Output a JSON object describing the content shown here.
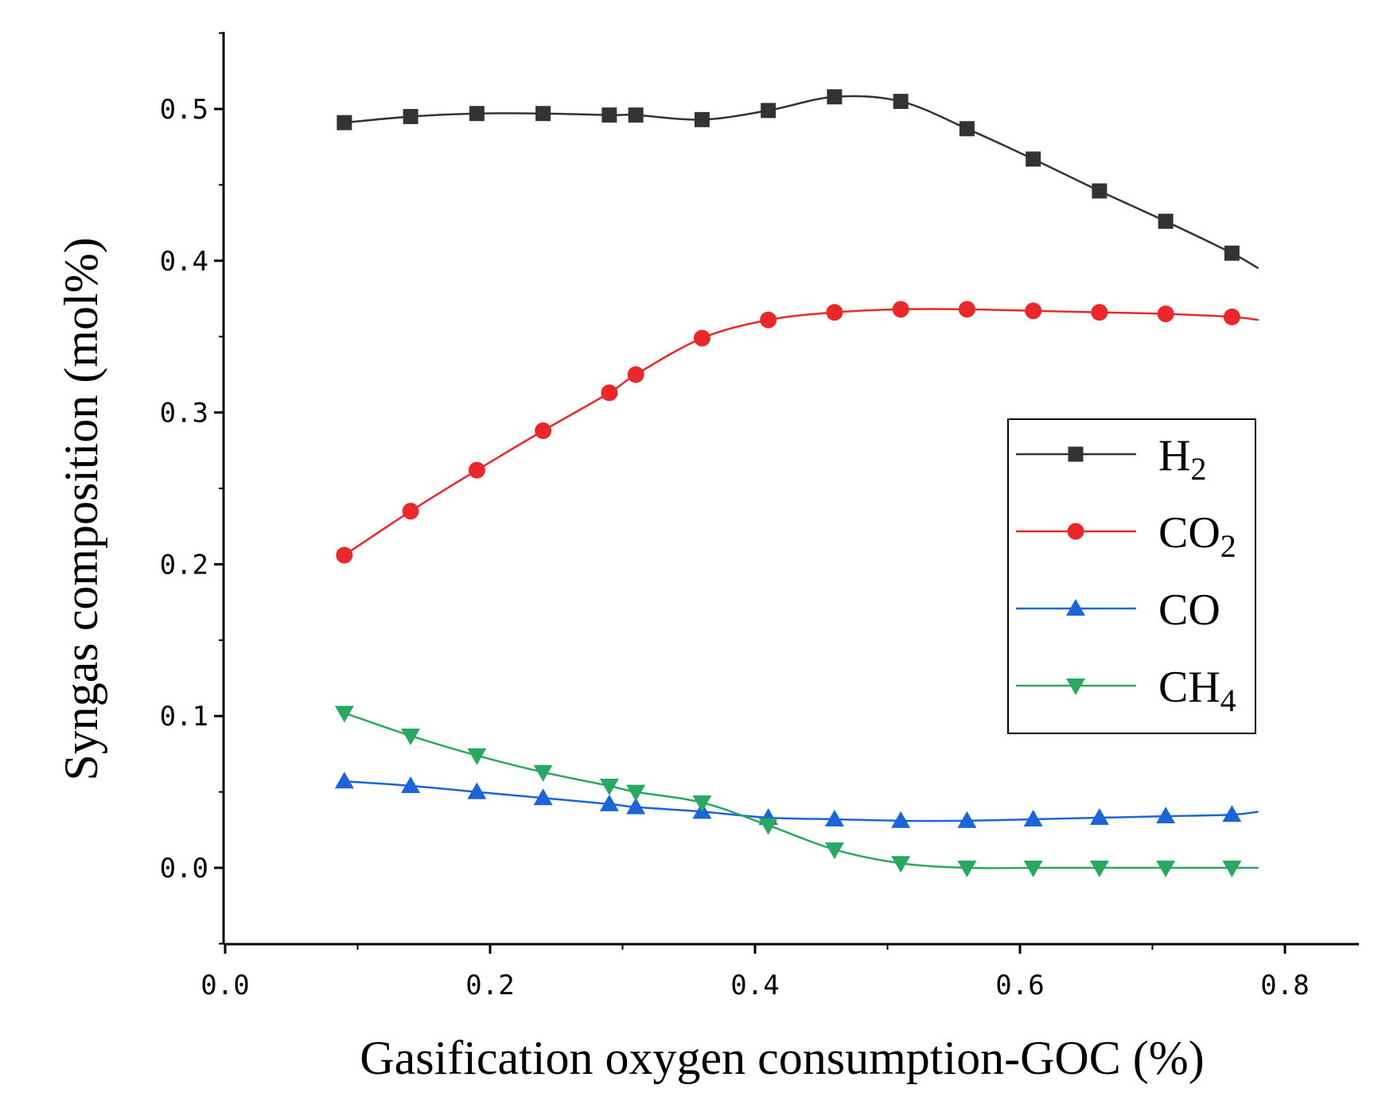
{
  "chart_data": {
    "type": "line",
    "title": "",
    "xlabel": "Gasification oxygen consumption-GOC (%)",
    "ylabel": "Syngas composition (mol%)",
    "xlim": [
      0.0,
      0.85
    ],
    "ylim": [
      -0.05,
      0.55
    ],
    "x_ticks": [
      "0.0",
      "0.2",
      "0.4",
      "0.6",
      "0.8"
    ],
    "y_ticks": [
      "0.0",
      "0.1",
      "0.2",
      "0.3",
      "0.4",
      "0.5"
    ],
    "x": [
      0.09,
      0.14,
      0.19,
      0.24,
      0.29,
      0.31,
      0.36,
      0.41,
      0.46,
      0.51,
      0.56,
      0.61,
      0.66,
      0.71,
      0.76
    ],
    "series": [
      {
        "name": "H2",
        "label_main": "H",
        "label_sub": "2",
        "color": "#333333",
        "marker": "square",
        "values": [
          0.491,
          0.495,
          0.497,
          0.497,
          0.496,
          0.496,
          0.493,
          0.499,
          0.508,
          0.505,
          0.487,
          0.467,
          0.446,
          0.426,
          0.405
        ],
        "line_end": [
          0.78,
          0.395
        ]
      },
      {
        "name": "CO2",
        "label_main": "CO",
        "label_sub": "2",
        "color": "#e8282b",
        "marker": "circle",
        "values": [
          0.206,
          0.235,
          0.262,
          0.288,
          0.313,
          0.325,
          0.349,
          0.361,
          0.366,
          0.368,
          0.368,
          0.367,
          0.366,
          0.365,
          0.363
        ],
        "line_end": [
          0.78,
          0.361
        ]
      },
      {
        "name": "CO",
        "label_main": "CO",
        "label_sub": "",
        "color": "#1c64d8",
        "marker": "triangle-up",
        "values": [
          0.057,
          0.054,
          0.05,
          0.046,
          0.042,
          0.04,
          0.037,
          0.033,
          0.032,
          0.031,
          0.031,
          0.032,
          0.033,
          0.034,
          0.035
        ],
        "line_end": [
          0.78,
          0.037
        ]
      },
      {
        "name": "CH4",
        "label_main": "CH",
        "label_sub": "4",
        "color": "#2aa760",
        "marker": "triangle-down",
        "values": [
          0.102,
          0.087,
          0.074,
          0.063,
          0.054,
          0.05,
          0.043,
          0.028,
          0.012,
          0.003,
          0.0,
          0.0,
          0.0,
          0.0,
          0.0
        ],
        "line_end": [
          0.78,
          0.0
        ]
      }
    ],
    "legend_position": "right-center"
  }
}
